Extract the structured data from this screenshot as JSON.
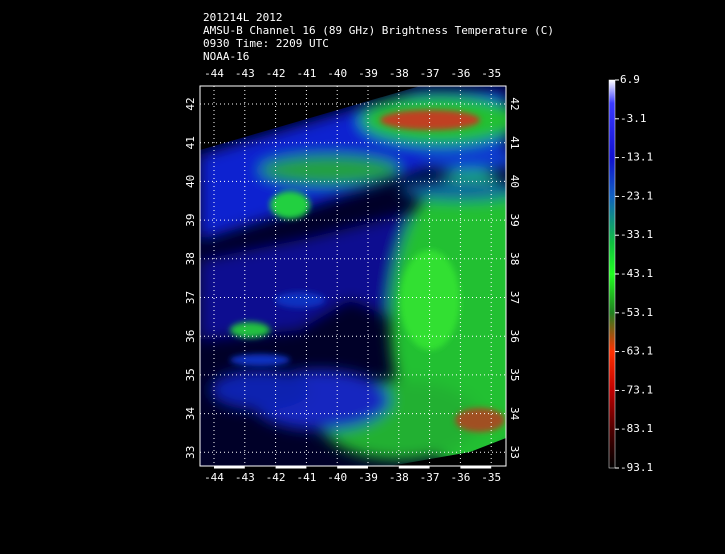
{
  "title_lines": [
    "201214L 2012",
    "AMSU-B Channel 16 (89 GHz) Brightness Temperature (C)",
    "0930 Time: 2209 UTC",
    "NOAA-16"
  ],
  "map": {
    "lon_ticks": [
      -44,
      -43,
      -42,
      -41,
      -40,
      -39,
      -38,
      -37,
      -36,
      -35
    ],
    "lat_ticks": [
      42,
      41,
      40,
      39,
      38,
      37,
      36,
      35,
      34,
      33
    ]
  },
  "colorbar": {
    "labels": [
      6.9,
      -3.1,
      -13.1,
      -23.1,
      -33.1,
      -43.1,
      -53.1,
      -63.1,
      -73.1,
      -83.1,
      -93.1
    ]
  }
}
